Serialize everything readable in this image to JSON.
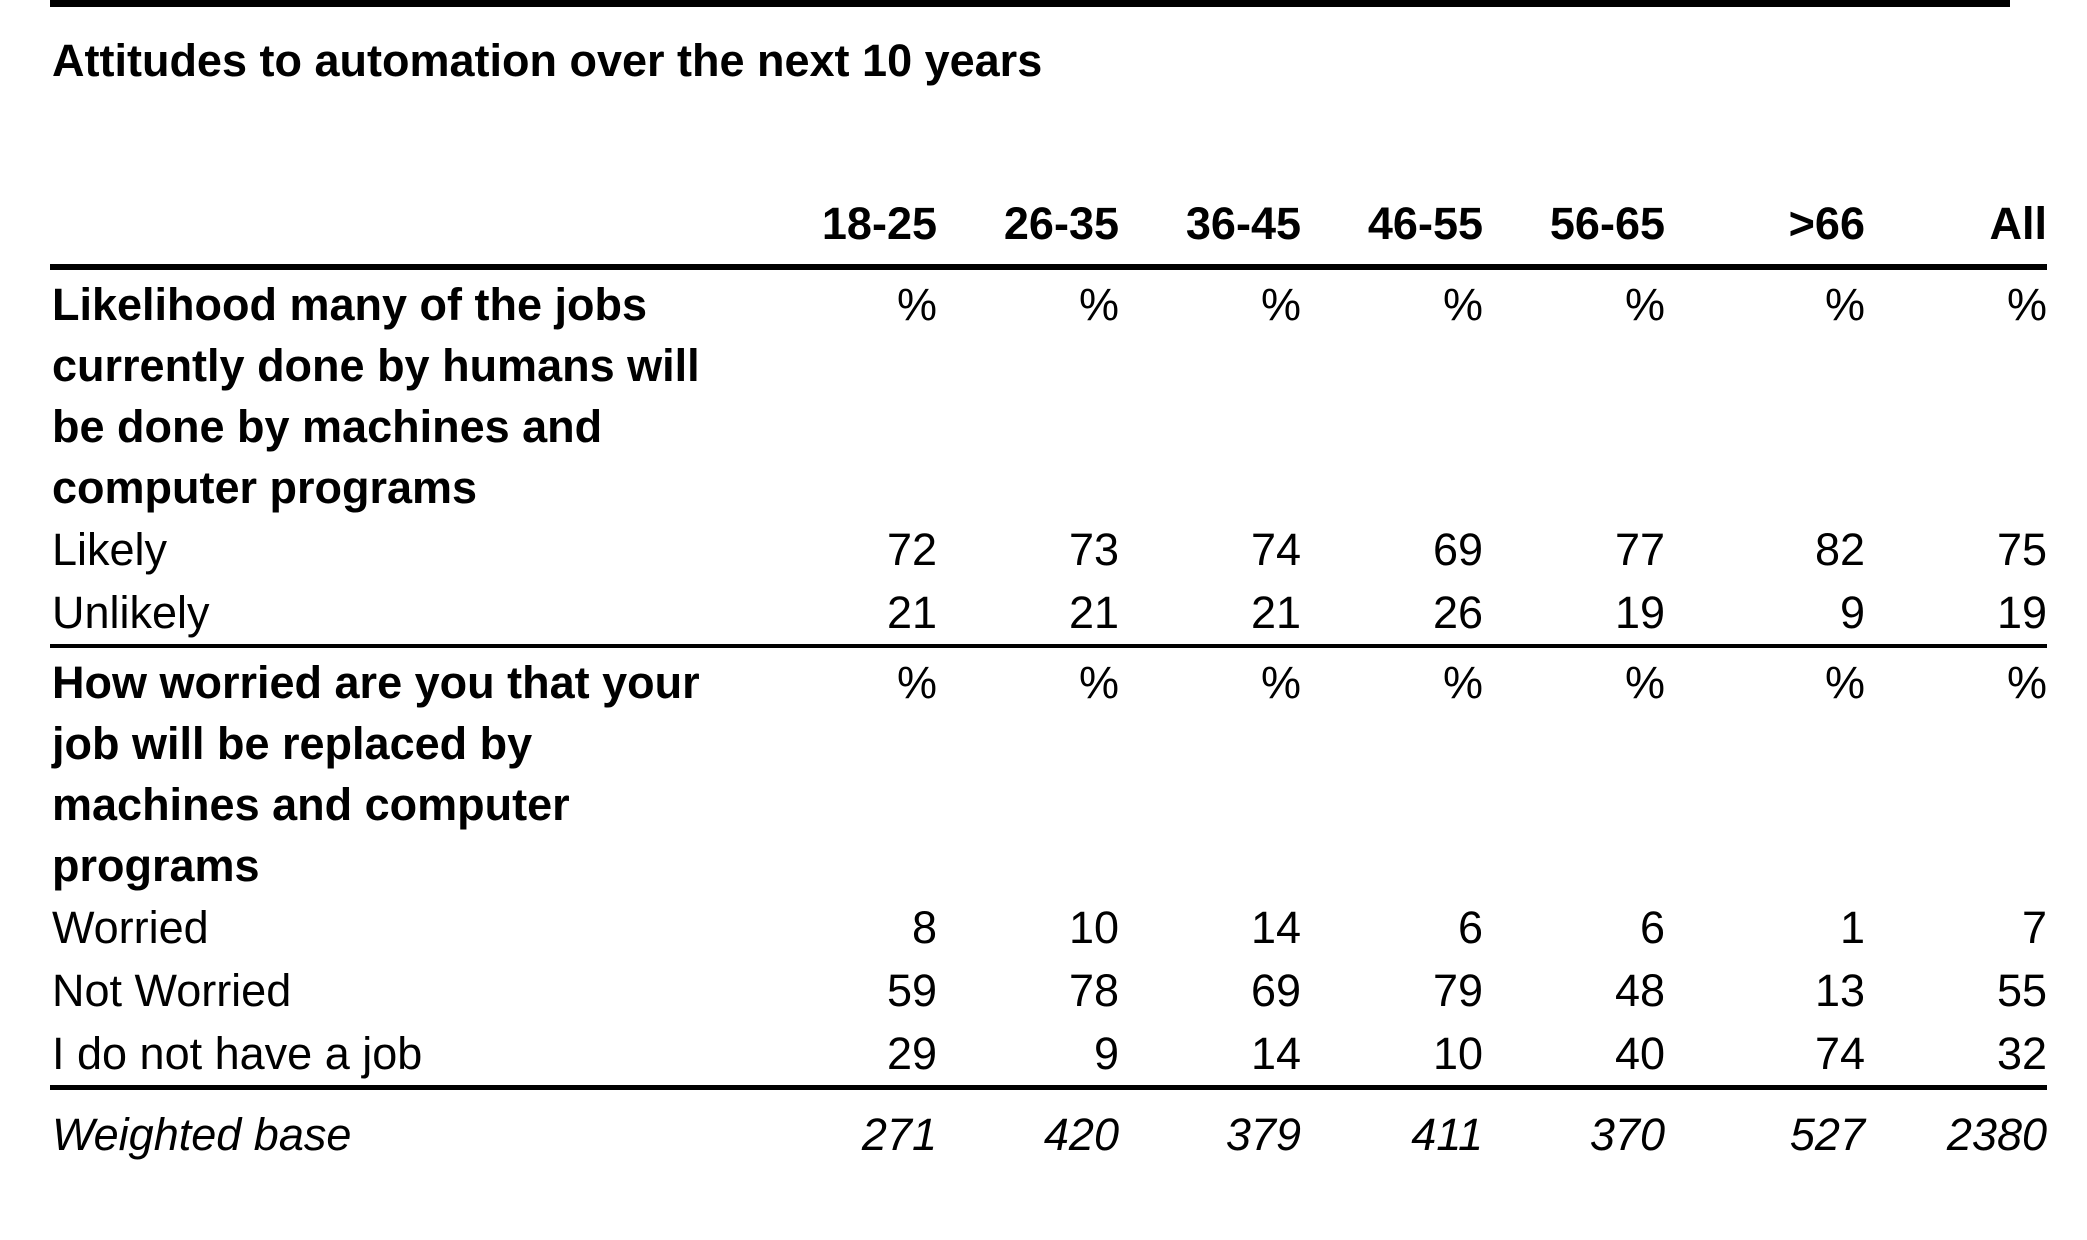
{
  "table": {
    "title": "Attitudes to automation over the next 10 years",
    "columns": [
      "18-25",
      "26-35",
      "36-45",
      "46-55",
      "56-65",
      ">66",
      "All"
    ],
    "sections": [
      {
        "question": "Likelihood many of the jobs currently done by humans will be done by machines and computer programs",
        "unit": "%",
        "rows": [
          {
            "label": "Likely",
            "values": [
              "72",
              "73",
              "74",
              "69",
              "77",
              "82",
              "75"
            ]
          },
          {
            "label": "Unlikely",
            "values": [
              "21",
              "21",
              "21",
              "26",
              "19",
              "9",
              "19"
            ]
          }
        ]
      },
      {
        "question": "How worried are you that your job will be replaced by machines and computer programs",
        "unit": "%",
        "rows": [
          {
            "label": "Worried",
            "values": [
              "8",
              "10",
              "14",
              "6",
              "6",
              "1",
              "7"
            ]
          },
          {
            "label": "Not Worried",
            "values": [
              "59",
              "78",
              "69",
              "79",
              "48",
              "13",
              "55"
            ]
          },
          {
            "label": "I do not have a job",
            "values": [
              "29",
              "9",
              "14",
              "10",
              "40",
              "74",
              "32"
            ]
          }
        ]
      }
    ],
    "base": {
      "label": "Weighted base",
      "values": [
        "271",
        "420",
        "379",
        "411",
        "370",
        "527",
        "2380"
      ]
    }
  }
}
